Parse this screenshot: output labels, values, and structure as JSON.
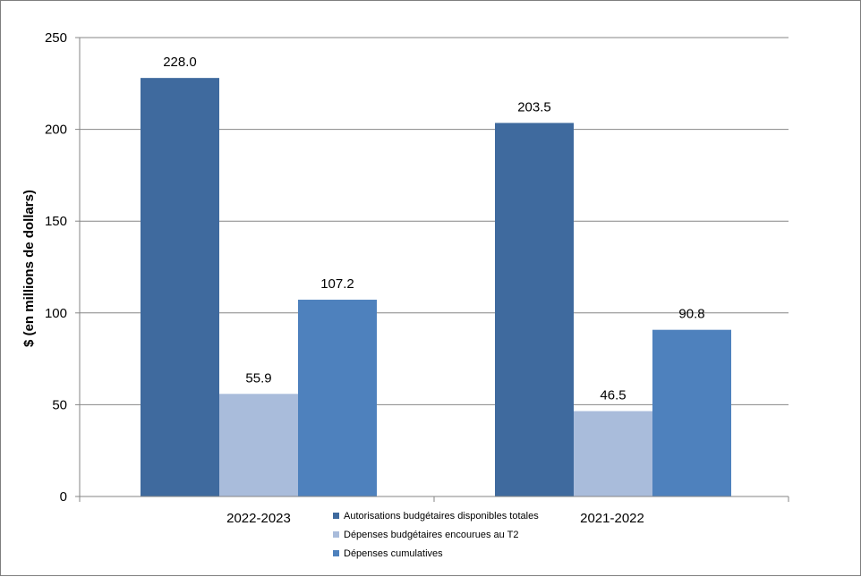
{
  "chart_data": {
    "type": "bar",
    "title": "",
    "xlabel": "",
    "ylabel": "$ (en millions de dollars)",
    "ylim": [
      0,
      250
    ],
    "yticks": [
      0,
      50,
      100,
      150,
      200,
      250
    ],
    "grid": true,
    "legend_position": "bottom-center",
    "categories": [
      "2022-2023",
      "2021-2022"
    ],
    "series": [
      {
        "name": "Autorisations budgétaires disponibles totales",
        "color": "#3F6A9E",
        "values": [
          228.0,
          203.5
        ],
        "labels": [
          "228.0",
          "203.5"
        ]
      },
      {
        "name": "Dépenses budgétaires encourues au T2",
        "color": "#A9BCDB",
        "values": [
          55.9,
          46.5
        ],
        "labels": [
          "55.9",
          "46.5"
        ]
      },
      {
        "name": "Dépenses cumulatives",
        "color": "#4E81BD",
        "values": [
          107.2,
          90.8
        ],
        "labels": [
          "107.2",
          "90.8"
        ]
      }
    ]
  }
}
